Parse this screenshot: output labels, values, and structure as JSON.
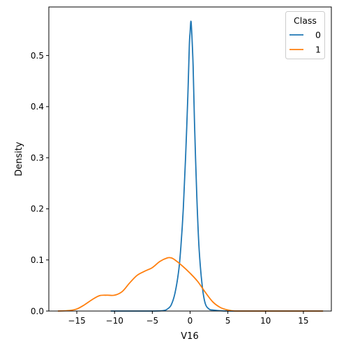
{
  "chart_data": {
    "type": "line",
    "title": "",
    "xlabel": "V16",
    "ylabel": "Density",
    "xlim": [
      -18.7,
      18.7
    ],
    "ylim": [
      0,
      0.595
    ],
    "xticks": [
      -15,
      -10,
      -5,
      0,
      5,
      10,
      15
    ],
    "xtick_labels": [
      "−15",
      "−10",
      "−5",
      "0",
      "5",
      "10",
      "15"
    ],
    "yticks": [
      0.0,
      0.1,
      0.2,
      0.3,
      0.4,
      0.5
    ],
    "ytick_labels": [
      "0.0",
      "0.1",
      "0.2",
      "0.3",
      "0.4",
      "0.5"
    ],
    "grid": false,
    "legend": {
      "title": "Class",
      "placement": "top-right"
    },
    "series": [
      {
        "name": "0",
        "color": "#1f77b4",
        "x": [
          -10.5,
          -5,
          -3.5,
          -3,
          -2.5,
          -2,
          -1.5,
          -1.2,
          -0.9,
          -0.6,
          -0.3,
          -0.1,
          0,
          0.1,
          0.2,
          0.4,
          0.6,
          0.9,
          1.2,
          1.6,
          2,
          2.5,
          3,
          5,
          10,
          17.6
        ],
        "y": [
          0.0,
          0.0,
          0.001,
          0.004,
          0.012,
          0.035,
          0.08,
          0.13,
          0.2,
          0.3,
          0.42,
          0.52,
          0.545,
          0.567,
          0.55,
          0.48,
          0.36,
          0.22,
          0.12,
          0.05,
          0.015,
          0.004,
          0.002,
          0.0,
          0.0,
          0.0
        ]
      },
      {
        "name": "1",
        "color": "#ff7f0e",
        "x": [
          -17.5,
          -16,
          -15,
          -14,
          -13,
          -12,
          -11,
          -10,
          -9,
          -8,
          -7,
          -6,
          -5,
          -4,
          -3,
          -2.5,
          -2,
          -1,
          0,
          1,
          2,
          3,
          4,
          5,
          6,
          8,
          10,
          17.6
        ],
        "y": [
          0.0,
          0.001,
          0.004,
          0.012,
          0.022,
          0.03,
          0.031,
          0.031,
          0.038,
          0.055,
          0.07,
          0.078,
          0.085,
          0.097,
          0.104,
          0.104,
          0.1,
          0.088,
          0.074,
          0.058,
          0.037,
          0.018,
          0.007,
          0.002,
          0.0,
          0.0,
          0.0,
          0.0
        ]
      }
    ]
  }
}
